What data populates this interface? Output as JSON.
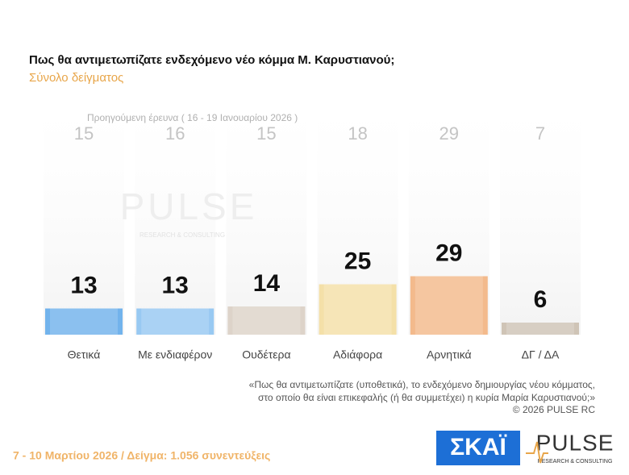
{
  "chart_data": {
    "type": "bar",
    "title": "Πως θα αντιμετωπίζατε ενδεχόμενο νέο κόμμα Μ. Καρυστιανού;",
    "subtitle": "Σύνολο δείγματος",
    "previous_label": "Προηγούμενη έρευνα ( 16 - 19 Ιανουαρίου 2026 )",
    "categories": [
      "Θετικά",
      "Με ενδιαφέρον",
      "Ουδέτερα",
      "Αδιάφορα",
      "Αρνητικά",
      "ΔΓ / ΔΑ"
    ],
    "previous_values": [
      15,
      16,
      15,
      18,
      29,
      7
    ],
    "values": [
      13,
      13,
      14,
      25,
      29,
      6
    ],
    "colors": [
      "#72b3ec",
      "#98c9f2",
      "#ddd3c9",
      "#f4e0a8",
      "#f3ba8c",
      "#cfc4b6"
    ]
  },
  "footnote": [
    "«Πως θα αντιμετωπίζατε (υποθετικά), το ενδεχόμενο δημιουργίας νέου κόμματος,",
    "στο οποίο θα είναι επικεφαλής (ή θα συμμετέχει) η κυρία Μαρία Καρυστιανού;»"
  ],
  "copyright": "©  2026  PULSE RC",
  "footer": "7 - 10  Μαρτίου 2026  /  Δείγμα:  1.056 συνεντεύξεις",
  "logos": {
    "skai": "ΣΚΑΪ",
    "pulse": "PULSE",
    "pulse_sub": "RESEARCH & CONSULTING"
  }
}
